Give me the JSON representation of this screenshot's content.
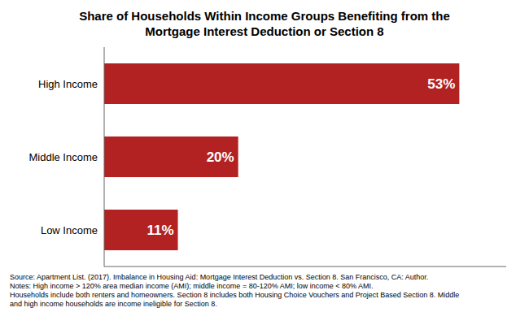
{
  "chart_data": {
    "type": "bar",
    "orientation": "horizontal",
    "title": "Share of Households Within Income Groups Benefiting from the\nMortgage Interest Deduction or Section 8",
    "categories": [
      "Low Income",
      "Middle Income",
      "High Income"
    ],
    "values": [
      11,
      20,
      53
    ],
    "value_labels": [
      "11%",
      "20%",
      "53%"
    ],
    "data_labels": true,
    "color": "#b22222",
    "xlim": [
      0,
      60
    ],
    "tick_labels": "y",
    "grid": false,
    "annotations": [
      "Source: Apartment List. (2017). Imbalance in Housing Aid: Mortgage Interest Deduction vs. Section 8. San Francisco, CA: Author.",
      "Notes: High income > 120% area median income (AMI); middle income = 80-120% AMI; low income < 80% AMI.",
      "Households include both renters and homeowners. Section 8 includes both Housing Choice Vouchers and Project Based Section 8. Middle",
      "and high income households are income ineligible for Section 8."
    ]
  }
}
